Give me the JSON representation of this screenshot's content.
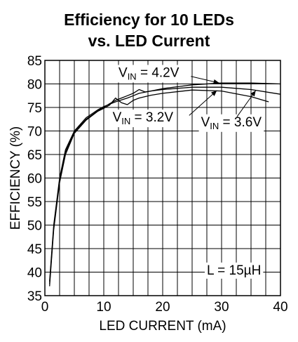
{
  "chart_data": {
    "type": "line",
    "title": "Efficiency for 10 LEDs",
    "subtitle": "vs. LED Current",
    "xlabel": "LED CURRENT (mA)",
    "ylabel": "EFFICIENCY (%)",
    "xlim": [
      0,
      40
    ],
    "ylim": [
      35,
      85
    ],
    "xticks": [
      0,
      10,
      20,
      30,
      40
    ],
    "yticks": [
      35,
      40,
      45,
      50,
      55,
      60,
      65,
      70,
      75,
      80,
      85
    ],
    "grid": true,
    "legend": "none",
    "series": [
      {
        "name": "VIN = 4.2V",
        "x": [
          0.8,
          1.5,
          2.5,
          3.5,
          5,
          7,
          9,
          10,
          12,
          14,
          15,
          16,
          18,
          20,
          25,
          30,
          35,
          40
        ],
        "y": [
          38,
          50,
          60,
          66,
          70,
          72.8,
          74.5,
          75.2,
          76.2,
          77,
          77.5,
          78,
          78.5,
          79,
          79.8,
          80.2,
          80.2,
          80
        ]
      },
      {
        "name": "VIN = 3.6V",
        "x": [
          0.8,
          1.5,
          2.5,
          3.5,
          5,
          7,
          9,
          10,
          11,
          12,
          13,
          14,
          15,
          16,
          17,
          18,
          20,
          25,
          30,
          35,
          40
        ],
        "y": [
          37.5,
          49.5,
          59.5,
          65.5,
          69.8,
          72.5,
          74.3,
          75,
          75.8,
          76.5,
          77,
          77.5,
          78,
          78.8,
          78.3,
          78.5,
          78.8,
          79.3,
          79.3,
          78.8,
          77.8
        ]
      },
      {
        "name": "VIN = 3.2V",
        "x": [
          0.8,
          1.5,
          2.5,
          3.5,
          5,
          7,
          9,
          10,
          11,
          12,
          13,
          14,
          15,
          16,
          18,
          20,
          25,
          30,
          35,
          38
        ],
        "y": [
          37,
          49,
          59,
          65,
          69.5,
          72.3,
          74.2,
          74.8,
          75.5,
          77,
          76,
          75.6,
          76.5,
          77,
          77.6,
          78,
          78.7,
          78.5,
          77.3,
          76.2
        ]
      }
    ],
    "annotations": [
      {
        "main": "V",
        "sub": "IN",
        "text": " = 4.2V",
        "x": 12.5,
        "y": 81.5
      },
      {
        "main": "V",
        "sub": "IN",
        "text": " = 3.2V",
        "x": 11.5,
        "y": 72
      },
      {
        "main": "V",
        "sub": "IN",
        "text": " = 3.6V",
        "x": 26.5,
        "y": 71
      },
      {
        "main": "",
        "sub": "",
        "text": "L = 15µH",
        "x": 27.5,
        "y": 39.5
      }
    ],
    "colors": {
      "line": "#000000",
      "grid": "#000000",
      "background": "#ffffff"
    }
  }
}
